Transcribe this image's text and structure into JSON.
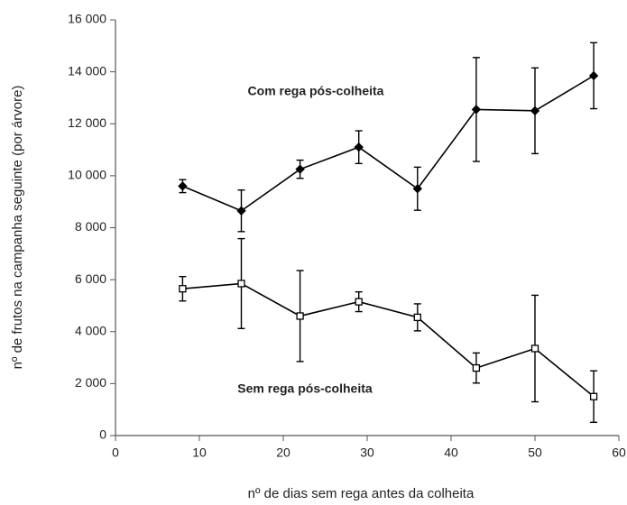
{
  "chart_data": {
    "type": "line",
    "x_label": "nº de dias sem rega antes da colheita",
    "y_label": "nº de frutos na campanha seguinte (por árvore)",
    "x": [
      8,
      15,
      22,
      29,
      36,
      43,
      50,
      57
    ],
    "series": [
      {
        "name": "Com rega pós-colheita",
        "color": "#000000",
        "marker": "diamond",
        "marker_fill": "#000000",
        "values": [
          9600,
          8650,
          10250,
          11100,
          9500,
          12550,
          12500,
          13850
        ],
        "errors": [
          250,
          800,
          350,
          630,
          830,
          2000,
          1650,
          1270
        ]
      },
      {
        "name": "Sem rega pós-colheita",
        "color": "#000000",
        "marker": "square",
        "marker_fill": "#ffffff",
        "values": [
          5650,
          5850,
          4600,
          5150,
          4550,
          2600,
          3350,
          1500
        ],
        "errors": [
          470,
          1730,
          1750,
          380,
          520,
          580,
          2050,
          990
        ]
      }
    ],
    "xlim": [
      0,
      60
    ],
    "xticks": [
      0,
      10,
      20,
      30,
      40,
      50,
      60
    ],
    "ylim": [
      0,
      16000
    ],
    "yticks": [
      0,
      {
        "value": 2000,
        "label": "2 000"
      },
      {
        "value": 4000,
        "label": "4 000"
      },
      {
        "value": 6000,
        "label": "6 000"
      },
      {
        "value": 8000,
        "label": "8 000"
      },
      {
        "value": 10000,
        "label": "10 000"
      },
      {
        "value": 12000,
        "label": "12 000"
      },
      {
        "value": 14000,
        "label": "14 000"
      },
      {
        "value": 16000,
        "label": "16 000"
      }
    ],
    "grid": false
  }
}
